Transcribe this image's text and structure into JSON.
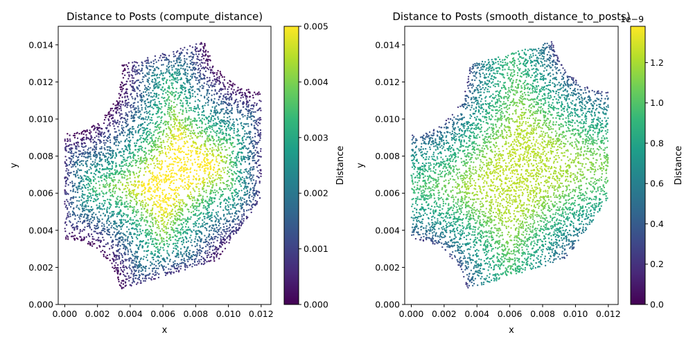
{
  "chart_data": [
    {
      "type": "scatter",
      "title": "Distance to Posts (compute_distance)",
      "xlabel": "x",
      "ylabel": "y",
      "xlim": [
        -0.0004,
        0.0126
      ],
      "ylim": [
        0.0,
        0.015
      ],
      "xticks": [
        0.0,
        0.002,
        0.004,
        0.006,
        0.008,
        0.01,
        0.012
      ],
      "xtick_labels": [
        "0.000",
        "0.002",
        "0.004",
        "0.006",
        "0.008",
        "0.010",
        "0.012"
      ],
      "yticks": [
        0.0,
        0.002,
        0.004,
        0.006,
        0.008,
        0.01,
        0.012,
        0.014
      ],
      "ytick_labels": [
        "0.000",
        "0.002",
        "0.004",
        "0.006",
        "0.008",
        "0.010",
        "0.012",
        "0.014"
      ],
      "domain": {
        "polygon": [
          [
            0.0,
            0.0093
          ],
          [
            0.0,
            0.0027
          ],
          [
            0.0026,
            0.0006
          ],
          [
            0.0094,
            0.0024
          ],
          [
            0.012,
            0.0057
          ],
          [
            0.012,
            0.0123
          ],
          [
            0.0094,
            0.0144
          ],
          [
            0.0026,
            0.0127
          ]
        ],
        "post_centers": [
          [
            0.0,
            0.0127
          ],
          [
            0.0,
            0.0
          ],
          [
            0.012,
            0.0
          ],
          [
            0.012,
            0.015
          ]
        ],
        "post_radius": 0.0035
      },
      "value_field": "compute_distance",
      "colormap": "viridis",
      "colorbar": {
        "label": "Distance",
        "vmin": 0.0,
        "vmax": 0.005,
        "ticks": [
          0.0,
          0.001,
          0.002,
          0.003,
          0.004,
          0.005
        ],
        "tick_labels": [
          "0.000",
          "0.001",
          "0.002",
          "0.003",
          "0.004",
          "0.005"
        ],
        "offset_text": ""
      },
      "point_count": 6000
    },
    {
      "type": "scatter",
      "title": "Distance to Posts (smooth_distance_to_posts)",
      "xlabel": "x",
      "ylabel": "y",
      "xlim": [
        -0.0004,
        0.0126
      ],
      "ylim": [
        0.0,
        0.015
      ],
      "xticks": [
        0.0,
        0.002,
        0.004,
        0.006,
        0.008,
        0.01,
        0.012
      ],
      "xtick_labels": [
        "0.000",
        "0.002",
        "0.004",
        "0.006",
        "0.008",
        "0.010",
        "0.012"
      ],
      "yticks": [
        0.0,
        0.002,
        0.004,
        0.006,
        0.008,
        0.01,
        0.012,
        0.014
      ],
      "ytick_labels": [
        "0.000",
        "0.002",
        "0.004",
        "0.006",
        "0.008",
        "0.010",
        "0.012",
        "0.014"
      ],
      "domain": {
        "polygon": [
          [
            0.0,
            0.0093
          ],
          [
            0.0,
            0.0027
          ],
          [
            0.0026,
            0.0006
          ],
          [
            0.0094,
            0.0024
          ],
          [
            0.012,
            0.0057
          ],
          [
            0.012,
            0.0123
          ],
          [
            0.0094,
            0.0144
          ],
          [
            0.0026,
            0.0127
          ]
        ],
        "post_centers": [
          [
            0.0,
            0.0127
          ],
          [
            0.0,
            0.0
          ],
          [
            0.012,
            0.0
          ],
          [
            0.012,
            0.015
          ]
        ],
        "post_radius": 0.0035
      },
      "value_field": "smooth_distance_to_posts",
      "colormap": "viridis",
      "colorbar": {
        "label": "Distance",
        "vmin": 0.0,
        "vmax": 1.38,
        "ticks": [
          0.0,
          0.2,
          0.4,
          0.6,
          0.8,
          1.0,
          1.2
        ],
        "tick_labels": [
          "0.0",
          "0.2",
          "0.4",
          "0.6",
          "0.8",
          "1.0",
          "1.2"
        ],
        "offset_text": "1e−9"
      },
      "point_count": 6000
    }
  ],
  "colors": {
    "viridis": [
      "#440154",
      "#482878",
      "#3e4989",
      "#31688e",
      "#26828e",
      "#1f9e89",
      "#35b779",
      "#6ece58",
      "#b5de2b",
      "#fde725"
    ]
  }
}
